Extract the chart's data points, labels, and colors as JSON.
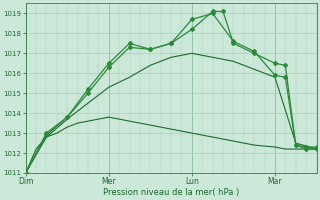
{
  "bg_color": "#cce8d8",
  "grid_color": "#aacfba",
  "line_dark": "#1a6b2a",
  "line_bright": "#2a8a3a",
  "xlabel": "Pression niveau de la mer( hPa )",
  "ylim": [
    1011,
    1019.5
  ],
  "yticks": [
    1011,
    1012,
    1013,
    1014,
    1015,
    1016,
    1017,
    1018,
    1019
  ],
  "xtick_labels": [
    "Dim",
    "Mer",
    "Lun",
    "Mar"
  ],
  "xtick_positions": [
    0,
    48,
    96,
    144
  ],
  "xmax": 168,
  "vlines": [
    0,
    48,
    96,
    144
  ],
  "series_flat_x": [
    0,
    6,
    12,
    18,
    24,
    30,
    36,
    42,
    48,
    54,
    60,
    66,
    72,
    78,
    84,
    90,
    96,
    102,
    108,
    114,
    120,
    126,
    132,
    138,
    144,
    150,
    156,
    162,
    168
  ],
  "series_flat_y": [
    1011.0,
    1012.2,
    1012.8,
    1013.0,
    1013.3,
    1013.5,
    1013.6,
    1013.7,
    1013.8,
    1013.7,
    1013.6,
    1013.5,
    1013.4,
    1013.3,
    1013.2,
    1013.1,
    1013.0,
    1012.9,
    1012.8,
    1012.7,
    1012.6,
    1012.5,
    1012.4,
    1012.35,
    1012.3,
    1012.2,
    1012.2,
    1012.2,
    1012.2
  ],
  "series_mid_x": [
    0,
    12,
    24,
    36,
    48,
    60,
    72,
    84,
    96,
    108,
    120,
    132,
    144,
    156,
    168
  ],
  "series_mid_y": [
    1011.0,
    1012.8,
    1013.7,
    1014.5,
    1015.3,
    1015.8,
    1016.4,
    1016.8,
    1017.0,
    1016.8,
    1016.6,
    1016.2,
    1015.8,
    1012.5,
    1012.2
  ],
  "series_high1_x": [
    0,
    12,
    24,
    36,
    48,
    60,
    72,
    84,
    96,
    108,
    120,
    132,
    144,
    150,
    156,
    162,
    168
  ],
  "series_high1_y": [
    1011.0,
    1013.0,
    1013.8,
    1015.2,
    1016.5,
    1017.5,
    1017.2,
    1017.5,
    1018.7,
    1019.0,
    1017.6,
    1017.1,
    1015.9,
    1015.8,
    1012.4,
    1012.2,
    1012.2
  ],
  "series_high2_x": [
    0,
    12,
    24,
    36,
    48,
    60,
    72,
    84,
    96,
    108,
    114,
    120,
    132,
    144,
    150,
    156,
    162,
    168
  ],
  "series_high2_y": [
    1011.0,
    1012.9,
    1013.8,
    1015.0,
    1016.3,
    1017.3,
    1017.2,
    1017.5,
    1018.2,
    1019.1,
    1019.1,
    1017.5,
    1017.0,
    1016.5,
    1016.4,
    1012.4,
    1012.3,
    1012.3
  ]
}
